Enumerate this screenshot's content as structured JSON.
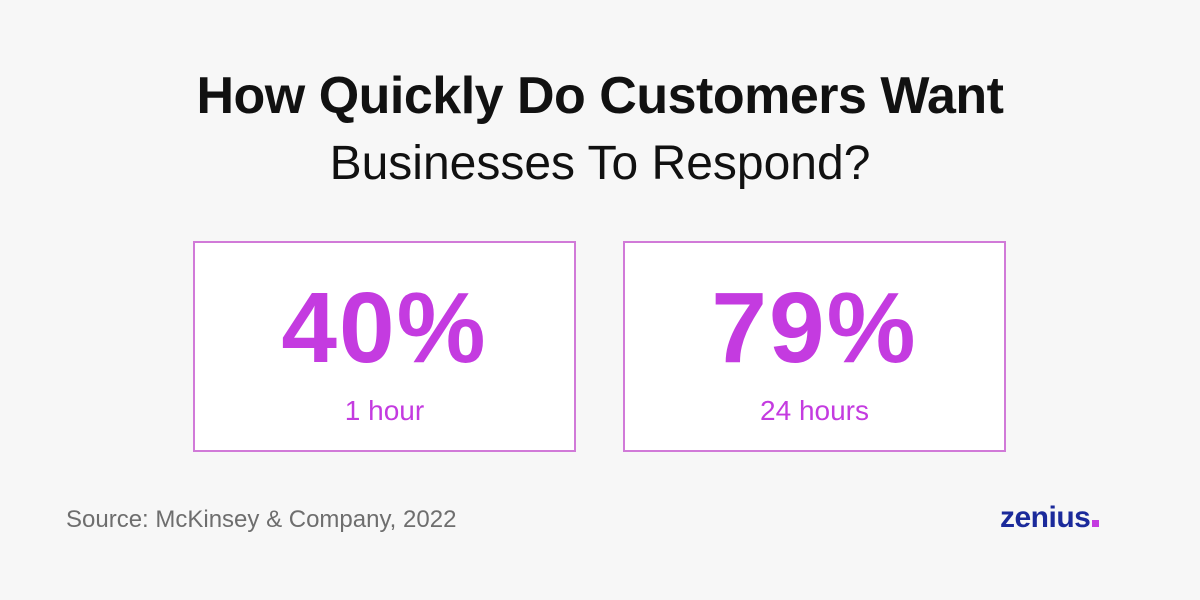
{
  "title": {
    "line1": "How Quickly Do Customers Want",
    "line2": "Businesses To Respond?"
  },
  "stats": [
    {
      "value": "40%",
      "label": "1 hour"
    },
    {
      "value": "79%",
      "label": "24 hours"
    }
  ],
  "source": "Source: McKinsey & Company, 2022",
  "brand": {
    "name": "zenius",
    "dot": "."
  },
  "colors": {
    "accent": "#c43be0",
    "border": "#d17ad8",
    "brand": "#1b2a9b",
    "background": "#f7f7f7"
  }
}
